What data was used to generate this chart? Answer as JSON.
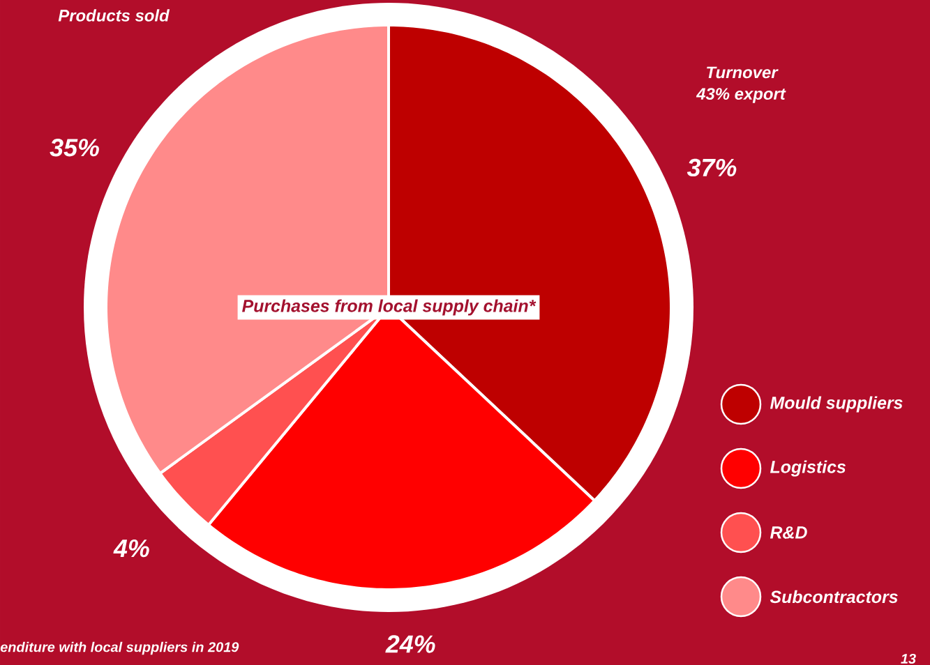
{
  "chart_data": {
    "type": "pie",
    "title": "Purchases from local supply chain*",
    "categories": [
      "Mould suppliers",
      "Logistics",
      "R&D",
      "Subcontractors"
    ],
    "values": [
      37,
      24,
      4,
      35
    ],
    "colors": [
      "#be0000",
      "#ff0000",
      "#ff5050",
      "#ff8a8a"
    ],
    "value_labels": [
      "37%",
      "24%",
      "4%",
      "35%"
    ],
    "legend": "right",
    "annotations": [
      "Products sold",
      "Turnover",
      "43% export",
      "enditure with local suppliers in 2019",
      "13"
    ]
  }
}
